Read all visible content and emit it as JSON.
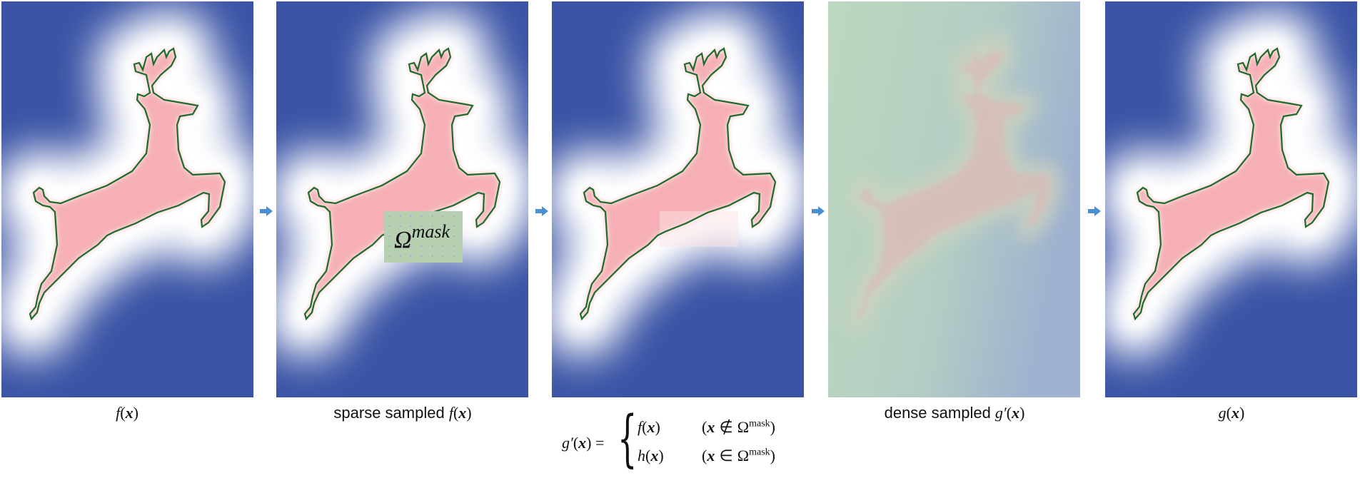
{
  "colors": {
    "background_blue": "#3a53a5",
    "glow": "#ffffff",
    "interior": "#f4a0a8",
    "outline": "#1d6b2a",
    "mask_fill": "#b5cfb0",
    "arrow": "#4a8fd0",
    "dense_green": "#b9d6bd",
    "dense_blue": "#9fb2cf"
  },
  "panels": [
    {
      "label": {
        "text": "",
        "func": "f",
        "arg": "x"
      }
    },
    {
      "label": {
        "text": "sparse sampled ",
        "func": "f",
        "arg": "x"
      },
      "mask": {
        "symbol": "Ω",
        "sup": "mask"
      }
    },
    {
      "label": null
    },
    {
      "label": {
        "text": "dense sampled ",
        "func": "g′",
        "arg": "x"
      }
    },
    {
      "label": {
        "text": "",
        "func": "g",
        "arg": "x"
      }
    }
  ],
  "equation": {
    "lhs_func": "g′",
    "arg": "x",
    "equals": "=",
    "case1": {
      "func": "f",
      "cond_op": "∉",
      "omega": "Ω",
      "sup": "mask"
    },
    "case2": {
      "func": "h",
      "cond_op": "∈",
      "omega": "Ω",
      "sup": "mask"
    }
  },
  "arrows": [
    "arrow-right-icon",
    "arrow-right-icon",
    "arrow-right-icon",
    "arrow-right-icon"
  ]
}
